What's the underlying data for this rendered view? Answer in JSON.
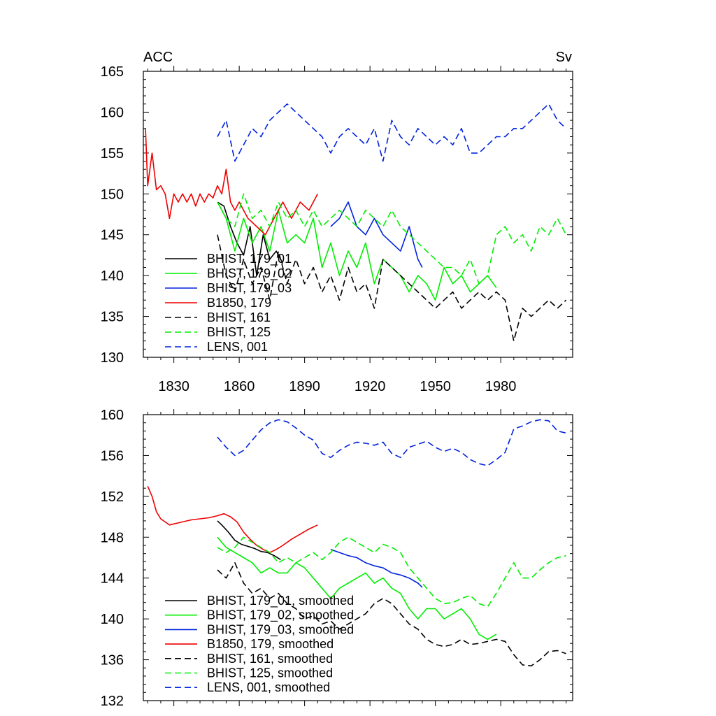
{
  "chart_data": [
    {
      "type": "line",
      "left_label": "ACC",
      "right_label": "Sv",
      "xlim": [
        1816,
        2013
      ],
      "ylim": [
        130,
        165
      ],
      "xticks": [
        1830,
        1860,
        1890,
        1920,
        1950,
        1980
      ],
      "xticks_labeled": true,
      "yticks": [
        130,
        135,
        140,
        145,
        150,
        155,
        160,
        165
      ],
      "series": [
        {
          "name": "BHIST, 179_01",
          "color": "#000000",
          "dash": "solid",
          "x": [
            1850,
            1853,
            1856,
            1859,
            1862,
            1865,
            1868,
            1871,
            1874,
            1877,
            1880
          ],
          "y": [
            149,
            148.5,
            146,
            144,
            142.5,
            146,
            140,
            145,
            142,
            143,
            141.5
          ]
        },
        {
          "name": "BHIST, 179_02",
          "color": "#00ee00",
          "dash": "solid",
          "x": [
            1850,
            1854,
            1858,
            1862,
            1866,
            1870,
            1874,
            1878,
            1882,
            1886,
            1890,
            1894,
            1898,
            1902,
            1906,
            1910,
            1914,
            1918,
            1922,
            1926,
            1930,
            1934,
            1938,
            1942,
            1946,
            1950,
            1954,
            1958,
            1962,
            1966,
            1970,
            1974,
            1978
          ],
          "y": [
            149,
            147,
            143,
            147,
            144,
            146,
            143,
            148,
            144,
            145,
            144,
            147,
            141,
            144,
            140,
            143,
            141,
            144,
            139,
            142,
            141,
            140,
            138,
            140,
            139,
            137,
            141,
            139,
            140,
            138,
            139,
            140,
            138.5
          ]
        },
        {
          "name": "BHIST, 179_03",
          "color": "#0022dd",
          "dash": "solid",
          "x": [
            1902,
            1906,
            1910,
            1914,
            1918,
            1922,
            1926,
            1930,
            1934,
            1938,
            1942,
            1944
          ],
          "y": [
            146,
            147,
            149,
            146,
            145,
            147,
            145,
            144,
            143,
            146,
            142,
            141
          ]
        },
        {
          "name": "B1850, 179",
          "color": "#ee0000",
          "dash": "solid",
          "x": [
            1817,
            1818,
            1820,
            1822,
            1824,
            1826,
            1828,
            1830,
            1832,
            1834,
            1836,
            1838,
            1840,
            1842,
            1844,
            1846,
            1848,
            1850,
            1852,
            1854,
            1856,
            1858,
            1860,
            1864,
            1868,
            1872,
            1876,
            1880,
            1884,
            1888,
            1892,
            1896
          ],
          "y": [
            158,
            151,
            155,
            150.5,
            151,
            150,
            147,
            150,
            149,
            150,
            149,
            150,
            148.5,
            150,
            149,
            150,
            149.5,
            151,
            150,
            153,
            149,
            148,
            149,
            147,
            146,
            145,
            147,
            149,
            147,
            149,
            148,
            150
          ]
        },
        {
          "name": "BHIST, 161",
          "color": "#000000",
          "dash": "dashed",
          "x": [
            1850,
            1854,
            1858,
            1862,
            1866,
            1870,
            1874,
            1878,
            1882,
            1886,
            1890,
            1894,
            1898,
            1902,
            1906,
            1910,
            1914,
            1918,
            1922,
            1926,
            1930,
            1934,
            1938,
            1942,
            1946,
            1950,
            1954,
            1958,
            1962,
            1966,
            1970,
            1974,
            1978,
            1982,
            1986,
            1990,
            1994,
            1998,
            2002,
            2006,
            2010
          ],
          "y": [
            145,
            140,
            138,
            142,
            139,
            141,
            137,
            143,
            139,
            142,
            139,
            141,
            138,
            140,
            137,
            141,
            138,
            139,
            136,
            142,
            141,
            140,
            139,
            138,
            137,
            136,
            137,
            138,
            136,
            137,
            138,
            137,
            138,
            137,
            132,
            136,
            135,
            136,
            137,
            136,
            137
          ]
        },
        {
          "name": "BHIST, 125",
          "color": "#00ee00",
          "dash": "dashed",
          "x": [
            1850,
            1854,
            1858,
            1862,
            1866,
            1870,
            1874,
            1878,
            1882,
            1886,
            1890,
            1894,
            1898,
            1902,
            1906,
            1910,
            1914,
            1918,
            1922,
            1926,
            1930,
            1934,
            1938,
            1942,
            1946,
            1950,
            1954,
            1958,
            1962,
            1966,
            1970,
            1974,
            1978,
            1982,
            1986,
            1990,
            1994,
            1998,
            2002,
            2006,
            2010
          ],
          "y": [
            149,
            147,
            146,
            150,
            147,
            148,
            146,
            149,
            147,
            148,
            146,
            148,
            146,
            147,
            148,
            147,
            146,
            148,
            147,
            146,
            148,
            146,
            145,
            144,
            143,
            142,
            141,
            141,
            140,
            142,
            139,
            140,
            145,
            146,
            144,
            145,
            143,
            146,
            145,
            147,
            145
          ]
        },
        {
          "name": "LENS, 001",
          "color": "#0022dd",
          "dash": "dashed",
          "x": [
            1850,
            1854,
            1858,
            1862,
            1866,
            1870,
            1874,
            1878,
            1882,
            1886,
            1890,
            1894,
            1898,
            1902,
            1906,
            1910,
            1914,
            1918,
            1922,
            1926,
            1930,
            1934,
            1938,
            1942,
            1946,
            1950,
            1954,
            1958,
            1962,
            1966,
            1970,
            1974,
            1978,
            1982,
            1986,
            1990,
            1994,
            1998,
            2002,
            2006,
            2010
          ],
          "y": [
            157,
            159,
            154,
            156,
            158,
            157,
            159,
            160,
            161,
            160,
            159,
            158,
            157,
            155,
            157,
            158,
            157,
            156,
            158,
            154,
            159,
            157,
            156,
            158,
            157,
            156,
            157,
            156,
            158,
            155,
            155,
            156,
            157,
            157,
            158,
            158,
            159,
            160,
            161,
            159,
            158
          ]
        }
      ]
    },
    {
      "type": "line",
      "xlim": [
        1816,
        2013
      ],
      "ylim": [
        132,
        160
      ],
      "xticks": [
        1830,
        1860,
        1890,
        1920,
        1950,
        1980
      ],
      "xticks_labeled": false,
      "yticks": [
        132,
        136,
        140,
        144,
        148,
        152,
        156,
        160
      ],
      "series": [
        {
          "name": "BHIST, 179_01, smoothed",
          "color": "#000000",
          "dash": "solid",
          "x": [
            1850,
            1852,
            1855,
            1858,
            1861,
            1864,
            1867,
            1870,
            1873,
            1876,
            1879
          ],
          "y": [
            149.6,
            149.2,
            148.5,
            147.7,
            147.3,
            147.1,
            146.9,
            146.6,
            146.5,
            146.2,
            145.8
          ]
        },
        {
          "name": "BHIST, 179_02, smoothed",
          "color": "#00ee00",
          "dash": "solid",
          "x": [
            1850,
            1854,
            1858,
            1862,
            1866,
            1870,
            1874,
            1878,
            1882,
            1886,
            1890,
            1894,
            1898,
            1902,
            1906,
            1910,
            1914,
            1918,
            1922,
            1926,
            1930,
            1934,
            1938,
            1942,
            1946,
            1950,
            1954,
            1958,
            1962,
            1966,
            1970,
            1974,
            1978
          ],
          "y": [
            148,
            147,
            146.5,
            146,
            145.5,
            144.5,
            145,
            144.5,
            144.5,
            145.5,
            145,
            144,
            143,
            142,
            143,
            143.5,
            144,
            144.5,
            143.5,
            144,
            143,
            142.5,
            141,
            140,
            141,
            141,
            140,
            140.5,
            141,
            140,
            138.5,
            138,
            138.5
          ]
        },
        {
          "name": "BHIST, 179_03, smoothed",
          "color": "#0022dd",
          "dash": "solid",
          "x": [
            1902,
            1906,
            1910,
            1914,
            1918,
            1922,
            1926,
            1930,
            1934,
            1938,
            1942,
            1944
          ],
          "y": [
            146.8,
            146.5,
            146.2,
            146,
            145.5,
            145.2,
            145,
            144.5,
            144.3,
            144,
            143.5,
            143.1
          ]
        },
        {
          "name": "B1850, 179, smoothed",
          "color": "#ee0000",
          "dash": "solid",
          "x": [
            1818,
            1820,
            1822,
            1824,
            1826,
            1828,
            1830,
            1834,
            1838,
            1842,
            1846,
            1850,
            1853,
            1856,
            1859,
            1862,
            1865,
            1868,
            1871,
            1874,
            1877,
            1880,
            1884,
            1888,
            1892,
            1896
          ],
          "y": [
            153,
            152,
            150.5,
            149.8,
            149.5,
            149.2,
            149.3,
            149.5,
            149.7,
            149.8,
            149.9,
            150.1,
            150.3,
            150,
            149.5,
            148.5,
            147.8,
            147.2,
            146.8,
            146.5,
            146.8,
            147.2,
            147.8,
            148.3,
            148.8,
            149.2
          ]
        },
        {
          "name": "BHIST, 161, smoothed",
          "color": "#000000",
          "dash": "dashed",
          "x": [
            1850,
            1854,
            1858,
            1862,
            1866,
            1870,
            1874,
            1878,
            1882,
            1886,
            1890,
            1894,
            1898,
            1902,
            1906,
            1910,
            1914,
            1918,
            1922,
            1926,
            1930,
            1934,
            1938,
            1942,
            1946,
            1950,
            1954,
            1958,
            1962,
            1966,
            1970,
            1974,
            1978,
            1982,
            1986,
            1990,
            1994,
            1998,
            2002,
            2006,
            2010
          ],
          "y": [
            144.8,
            144,
            145.5,
            143.5,
            142.5,
            143,
            142,
            142.5,
            141.5,
            141,
            140,
            140.3,
            139.5,
            139.8,
            139,
            139.5,
            140,
            140.5,
            141.5,
            142,
            141.5,
            140.5,
            139.5,
            139,
            138,
            137.5,
            137.3,
            137.5,
            138,
            137.5,
            137.6,
            137.8,
            138,
            137.8,
            136.5,
            135.5,
            135.4,
            136,
            136.8,
            136.9,
            136.6
          ]
        },
        {
          "name": "BHIST, 125, smoothed",
          "color": "#00ee00",
          "dash": "dashed",
          "x": [
            1850,
            1854,
            1858,
            1862,
            1866,
            1870,
            1874,
            1878,
            1882,
            1886,
            1890,
            1894,
            1898,
            1902,
            1906,
            1910,
            1914,
            1918,
            1922,
            1926,
            1930,
            1934,
            1938,
            1942,
            1946,
            1950,
            1954,
            1958,
            1962,
            1966,
            1970,
            1974,
            1978,
            1982,
            1986,
            1990,
            1994,
            1998,
            2002,
            2006,
            2010
          ],
          "y": [
            147,
            146.5,
            147,
            148,
            147.5,
            147,
            146.5,
            145.5,
            146,
            145.5,
            146,
            146.5,
            145.8,
            146.5,
            147.5,
            148,
            147.5,
            147,
            146.5,
            147.3,
            147,
            146.5,
            145,
            144,
            143,
            142,
            141.5,
            141.6,
            142,
            142.3,
            141.5,
            141.2,
            142.5,
            144,
            145.5,
            144,
            144,
            144.8,
            145.5,
            146,
            146.2
          ]
        },
        {
          "name": "LENS, 001, smoothed",
          "color": "#0022dd",
          "dash": "dashed",
          "x": [
            1850,
            1854,
            1858,
            1862,
            1866,
            1870,
            1874,
            1878,
            1882,
            1886,
            1890,
            1894,
            1898,
            1902,
            1906,
            1910,
            1914,
            1918,
            1922,
            1926,
            1930,
            1934,
            1938,
            1942,
            1946,
            1950,
            1954,
            1958,
            1962,
            1966,
            1970,
            1974,
            1978,
            1982,
            1986,
            1990,
            1994,
            1998,
            2002,
            2006,
            2010
          ],
          "y": [
            157.8,
            156.8,
            156,
            156.5,
            157.5,
            158.5,
            159.2,
            159.5,
            159.3,
            158.7,
            158,
            157.5,
            156.2,
            155.8,
            156.5,
            157,
            157.3,
            157.2,
            157,
            157.3,
            156.2,
            155.8,
            156.8,
            157.1,
            157.4,
            156.8,
            156.4,
            156.7,
            156.3,
            155.6,
            155.2,
            155,
            155.6,
            156.3,
            158.6,
            158.9,
            159.3,
            159.5,
            159.4,
            158.4,
            158.2
          ]
        }
      ]
    }
  ]
}
